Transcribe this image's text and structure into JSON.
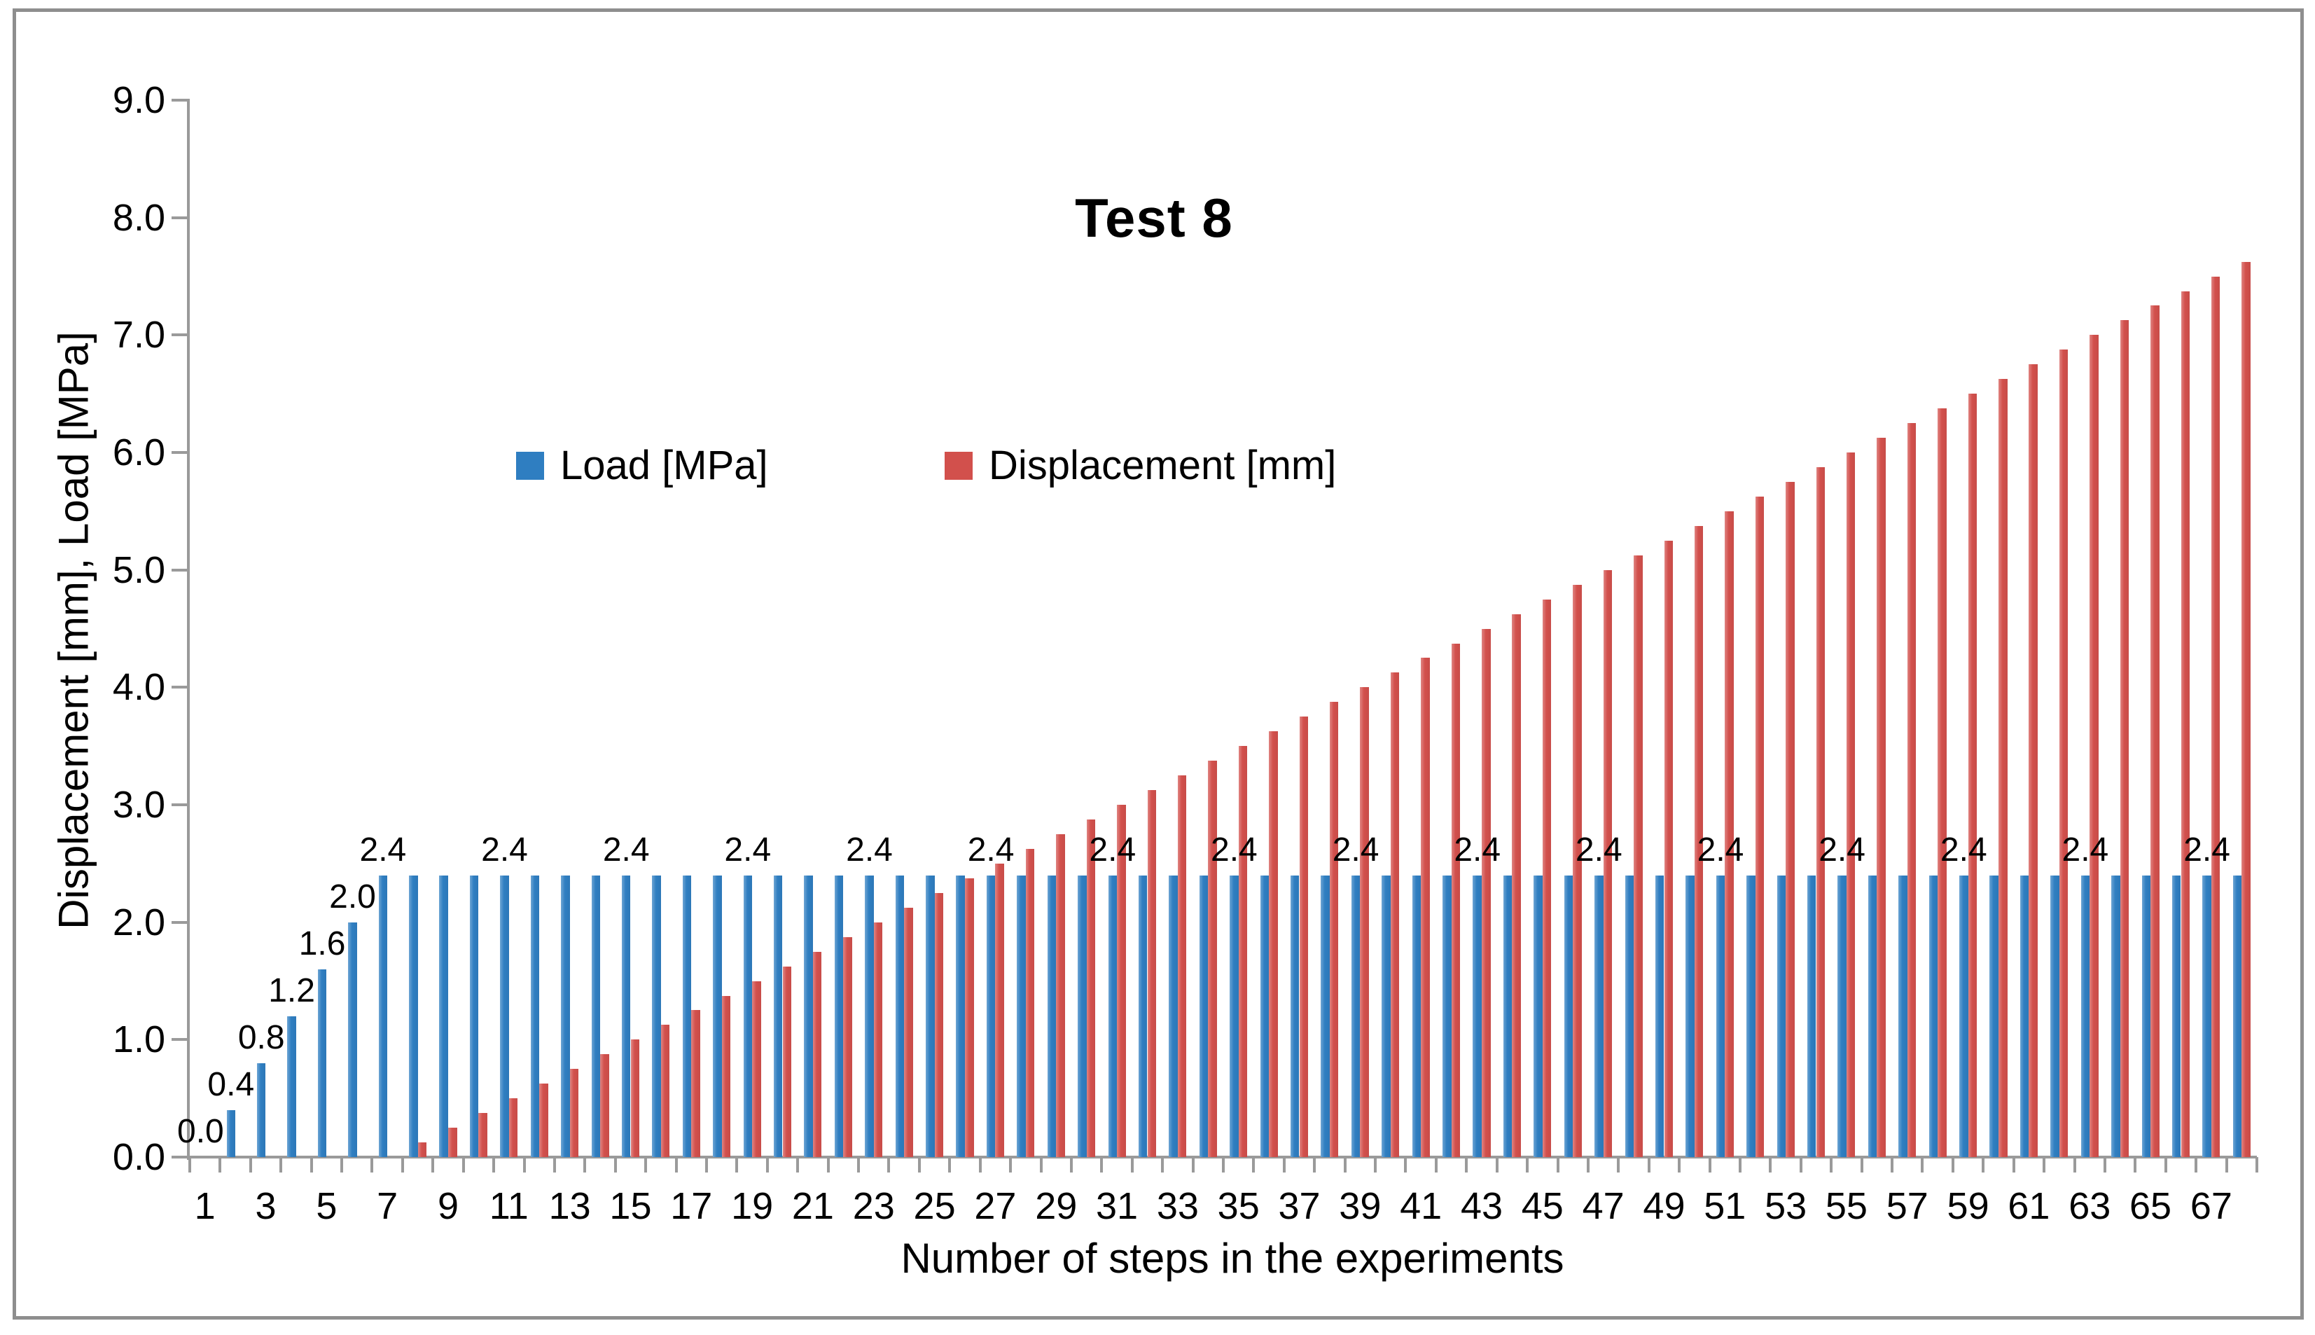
{
  "title": "Test 8",
  "axes": {
    "x_title": "Number of steps in the experiments",
    "y_title": "Displacement [mm], Load [MPa]",
    "y_tick_labels": [
      "0.0",
      "1.0",
      "2.0",
      "3.0",
      "4.0",
      "5.0",
      "6.0",
      "7.0",
      "8.0",
      "9.0"
    ],
    "x_tick_labels": [
      1,
      3,
      5,
      7,
      9,
      11,
      13,
      15,
      17,
      19,
      21,
      23,
      25,
      27,
      29,
      31,
      33,
      35,
      37,
      39,
      41,
      43,
      45,
      47,
      49,
      51,
      53,
      55,
      57,
      59,
      61,
      63,
      65,
      67
    ]
  },
  "legend": {
    "items": [
      {
        "label": "Load [MPa]",
        "color": "#2f7ec1"
      },
      {
        "label": "Displacement [mm]",
        "color": "#d2504c"
      }
    ]
  },
  "colors": {
    "load_bar": "#2f7ec1",
    "displacement_bar": "#d2504c",
    "axis": "#9a9a9a",
    "frame_border": "#8e8e8e",
    "text": "#000000"
  },
  "chart_data": {
    "type": "bar",
    "title": "Test 8",
    "xlabel": "Number of steps in the experiments",
    "ylabel": "Displacement [mm], Load [MPa]",
    "ylim": [
      0,
      9
    ],
    "grid": false,
    "legend_position": "inside-top",
    "categories": [
      1,
      2,
      3,
      4,
      5,
      6,
      7,
      8,
      9,
      10,
      11,
      12,
      13,
      14,
      15,
      16,
      17,
      18,
      19,
      20,
      21,
      22,
      23,
      24,
      25,
      26,
      27,
      28,
      29,
      30,
      31,
      32,
      33,
      34,
      35,
      36,
      37,
      38,
      39,
      40,
      41,
      42,
      43,
      44,
      45,
      46,
      47,
      48,
      49,
      50,
      51,
      52,
      53,
      54,
      55,
      56,
      57,
      58,
      59,
      60,
      61,
      62,
      63,
      64,
      65,
      66,
      67,
      68
    ],
    "series": [
      {
        "name": "Load [MPa]",
        "color": "#2f7ec1",
        "values": [
          0.0,
          0.4,
          0.8,
          1.2,
          1.6,
          2.0,
          2.4,
          2.4,
          2.4,
          2.4,
          2.4,
          2.4,
          2.4,
          2.4,
          2.4,
          2.4,
          2.4,
          2.4,
          2.4,
          2.4,
          2.4,
          2.4,
          2.4,
          2.4,
          2.4,
          2.4,
          2.4,
          2.4,
          2.4,
          2.4,
          2.4,
          2.4,
          2.4,
          2.4,
          2.4,
          2.4,
          2.4,
          2.4,
          2.4,
          2.4,
          2.4,
          2.4,
          2.4,
          2.4,
          2.4,
          2.4,
          2.4,
          2.4,
          2.4,
          2.4,
          2.4,
          2.4,
          2.4,
          2.4,
          2.4,
          2.4,
          2.4,
          2.4,
          2.4,
          2.4,
          2.4,
          2.4,
          2.4,
          2.4,
          2.4,
          2.4,
          2.4,
          2.4
        ]
      },
      {
        "name": "Displacement [mm]",
        "color": "#d2504c",
        "values": [
          0,
          0,
          0,
          0,
          0,
          0,
          0,
          0.125,
          0.25,
          0.375,
          0.5,
          0.625,
          0.75,
          0.875,
          1.0,
          1.125,
          1.25,
          1.375,
          1.5,
          1.625,
          1.75,
          1.875,
          2.0,
          2.125,
          2.25,
          2.375,
          2.5,
          2.625,
          2.75,
          2.875,
          3.0,
          3.125,
          3.25,
          3.375,
          3.5,
          3.625,
          3.75,
          3.875,
          4.0,
          4.125,
          4.25,
          4.375,
          4.5,
          4.625,
          4.75,
          4.875,
          5.0,
          5.125,
          5.25,
          5.375,
          5.5,
          5.625,
          5.75,
          5.875,
          6.0,
          6.125,
          6.25,
          6.375,
          6.5,
          6.625,
          6.75,
          6.875,
          7.0,
          7.125,
          7.25,
          7.375,
          7.5,
          7.625
        ]
      }
    ],
    "data_labels": [
      {
        "step": 1,
        "text": "0.0"
      },
      {
        "step": 2,
        "text": "0.4"
      },
      {
        "step": 3,
        "text": "0.8"
      },
      {
        "step": 4,
        "text": "1.2"
      },
      {
        "step": 5,
        "text": "1.6"
      },
      {
        "step": 6,
        "text": "2.0"
      },
      {
        "step": 7,
        "text": "2.4"
      },
      {
        "step": 11,
        "text": "2.4"
      },
      {
        "step": 15,
        "text": "2.4"
      },
      {
        "step": 19,
        "text": "2.4"
      },
      {
        "step": 23,
        "text": "2.4"
      },
      {
        "step": 27,
        "text": "2.4"
      },
      {
        "step": 31,
        "text": "2.4"
      },
      {
        "step": 35,
        "text": "2.4"
      },
      {
        "step": 39,
        "text": "2.4"
      },
      {
        "step": 43,
        "text": "2.4"
      },
      {
        "step": 47,
        "text": "2.4"
      },
      {
        "step": 51,
        "text": "2.4"
      },
      {
        "step": 55,
        "text": "2.4"
      },
      {
        "step": 59,
        "text": "2.4"
      },
      {
        "step": 63,
        "text": "2.4"
      },
      {
        "step": 67,
        "text": "2.4"
      }
    ]
  }
}
